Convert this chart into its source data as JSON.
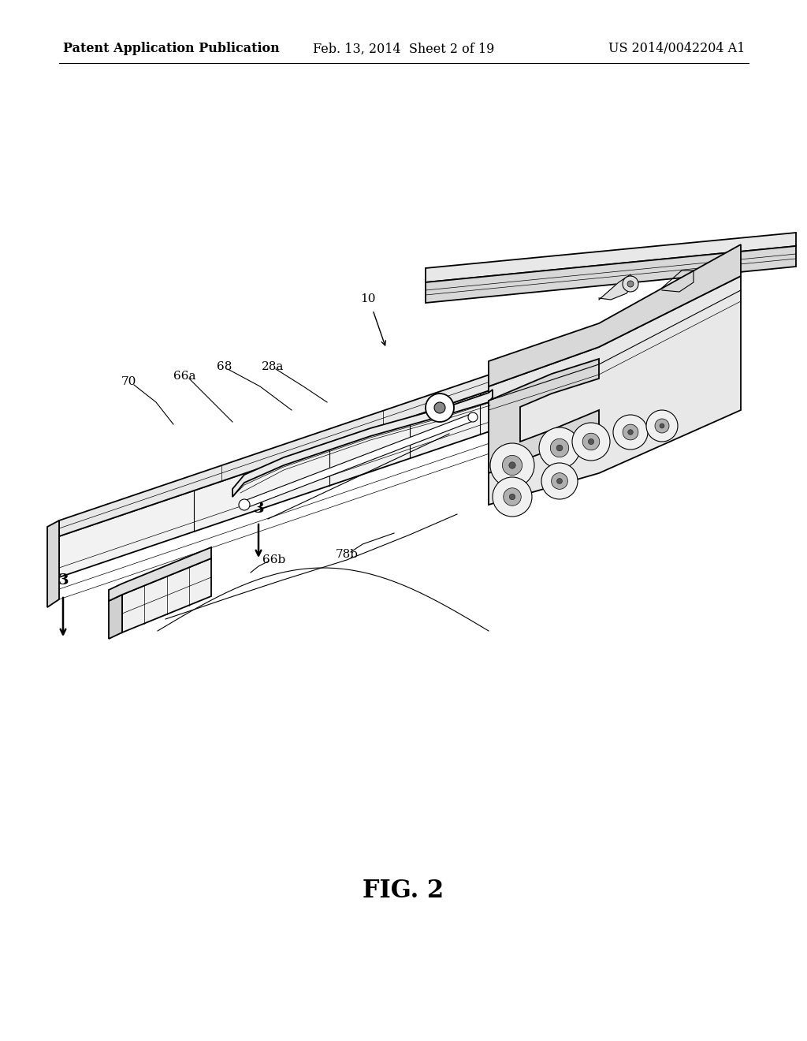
{
  "background_color": "#ffffff",
  "header_left": "Patent Application Publication",
  "header_center": "Feb. 13, 2014  Sheet 2 of 19",
  "header_right": "US 2014/0042204 A1",
  "header_fontsize": 11.5,
  "fig_caption": "FIG. 2",
  "fig_caption_fontsize": 22,
  "page_width": 10.24,
  "page_height": 13.2,
  "dpi": 100,
  "line_color": "#000000",
  "bg_color": "#ffffff",
  "light_gray": "#e0e0e0",
  "mid_gray": "#c8c8c8"
}
